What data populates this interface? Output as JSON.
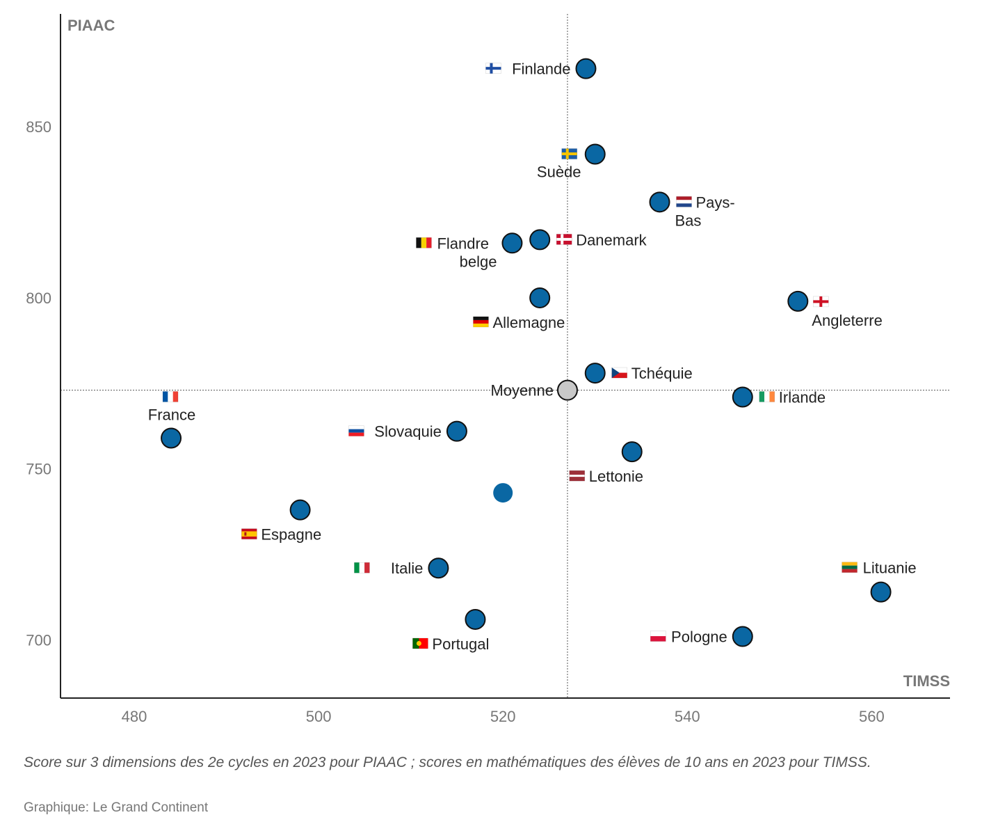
{
  "chart_data": {
    "type": "scatter",
    "xlabel": "TIMSS",
    "ylabel": "PIAAC",
    "xlim": [
      472,
      568.5
    ],
    "ylim": [
      683,
      883
    ],
    "xticks": [
      480,
      500,
      520,
      540,
      560
    ],
    "yticks": [
      700,
      750,
      800,
      850
    ],
    "reference_lines": {
      "x": 527,
      "y": 773
    },
    "points": [
      {
        "name": "Finlande",
        "x": 529,
        "y": 867,
        "flag": "finland-flag",
        "label_pos": "left"
      },
      {
        "name": "Suède",
        "x": 530,
        "y": 842,
        "flag": "sweden-flag",
        "label_pos": "below-left"
      },
      {
        "name": "Pays-Bas",
        "x": 537,
        "y": 828,
        "flag": "netherlands-flag",
        "label_pos": "right-wrap"
      },
      {
        "name": "Danemark",
        "x": 524,
        "y": 817,
        "flag": "denmark-flag",
        "label_pos": "right"
      },
      {
        "name": "Flandre belge",
        "x": 521,
        "y": 816,
        "flag": "belgium-flag",
        "label_pos": "left-wrap"
      },
      {
        "name": "Allemagne",
        "x": 524,
        "y": 800,
        "flag": "germany-flag",
        "label_pos": "below"
      },
      {
        "name": "Angleterre",
        "x": 552,
        "y": 799,
        "flag": "england-flag",
        "label_pos": "right-below"
      },
      {
        "name": "Tchéquie",
        "x": 530,
        "y": 778,
        "flag": "czechia-flag",
        "label_pos": "right"
      },
      {
        "name": "Moyenne",
        "x": 527,
        "y": 773,
        "flag": "",
        "label_pos": "left",
        "average": true
      },
      {
        "name": "Irlande",
        "x": 546,
        "y": 771,
        "flag": "ireland-flag",
        "label_pos": "right"
      },
      {
        "name": "France",
        "x": 484,
        "y": 759,
        "flag": "france-flag",
        "label_pos": "above"
      },
      {
        "name": "Slovaquie",
        "x": 515,
        "y": 761,
        "flag": "slovakia-flag",
        "label_pos": "left"
      },
      {
        "name": "Lettonie",
        "x": 534,
        "y": 755,
        "flag": "latvia-flag",
        "label_pos": "below"
      },
      {
        "name": "",
        "x": 520,
        "y": 743,
        "flag": "",
        "label_pos": "none",
        "unlabeled": true
      },
      {
        "name": "Espagne",
        "x": 498,
        "y": 738,
        "flag": "spain-flag",
        "label_pos": "below"
      },
      {
        "name": "Italie",
        "x": 513,
        "y": 721,
        "flag": "italy-flag",
        "label_pos": "left"
      },
      {
        "name": "Lituanie",
        "x": 561,
        "y": 714,
        "flag": "lithuania-flag",
        "label_pos": "above"
      },
      {
        "name": "Portugal",
        "x": 517,
        "y": 706,
        "flag": "portugal-flag",
        "label_pos": "below"
      },
      {
        "name": "Pologne",
        "x": 546,
        "y": 701,
        "flag": "poland-flag",
        "label_pos": "left"
      }
    ],
    "colors": {
      "point": "#0a67a3",
      "average": "#c8c8c8",
      "axis": "#222222",
      "tick_text": "#777777",
      "axis_title": "#777777"
    }
  },
  "footnote": "Score sur 3 dimensions des 2e cycles en 2023 pour PIAAC ; scores en mathématiques des élèves de 10 ans en 2023 pour TIMSS.",
  "credit": "Graphique: Le Grand Continent"
}
